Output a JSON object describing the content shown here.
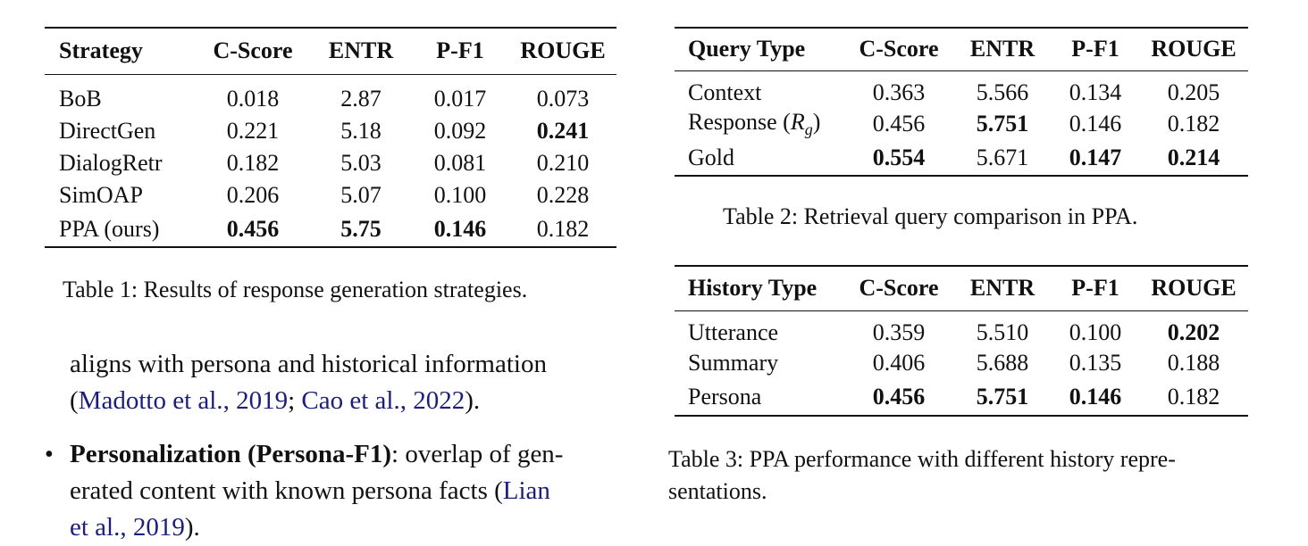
{
  "table1": {
    "headers": [
      "Strategy",
      "C-Score",
      "ENTR",
      "P-F1",
      "ROUGE"
    ],
    "rows": [
      [
        "BoB",
        "0.018",
        "2.87",
        "0.017",
        "0.073"
      ],
      [
        "DirectGen",
        "0.221",
        "5.18",
        "0.092",
        "0.241"
      ],
      [
        "DialogRetr",
        "0.182",
        "5.03",
        "0.081",
        "0.210"
      ],
      [
        "SimOAP",
        "0.206",
        "5.07",
        "0.100",
        "0.228"
      ],
      [
        "PPA (ours)",
        "0.456",
        "5.75",
        "0.146",
        "0.182"
      ]
    ],
    "caption": "Table 1: Results of response generation strategies."
  },
  "table2": {
    "headers": [
      "Query Type",
      "C-Score",
      "ENTR",
      "P-F1",
      "ROUGE"
    ],
    "rows": [
      [
        "Context",
        "0.363",
        "5.566",
        "0.134",
        "0.205"
      ],
      [
        "Response",
        "0.456",
        "5.751",
        "0.146",
        "0.182"
      ],
      [
        "Gold",
        "0.554",
        "5.671",
        "0.147",
        "0.214"
      ]
    ],
    "response_math": "R",
    "response_sub": "g",
    "caption": "Table 2: Retrieval query comparison in PPA."
  },
  "table3": {
    "headers": [
      "History Type",
      "C-Score",
      "ENTR",
      "P-F1",
      "ROUGE"
    ],
    "rows": [
      [
        "Utterance",
        "0.359",
        "5.510",
        "0.100",
        "0.202"
      ],
      [
        "Summary",
        "0.406",
        "5.688",
        "0.135",
        "0.188"
      ],
      [
        "Persona",
        "0.456",
        "5.751",
        "0.146",
        "0.182"
      ]
    ],
    "caption_line1": "Table 3: PPA performance with different history repre-",
    "caption_line2": "sentations."
  },
  "body": {
    "line1": "aligns with persona and historical information",
    "cite1_author": "Madotto et al.",
    "cite1_year": "2019",
    "cite2_author": "Cao et al.",
    "cite2_year": "2022",
    "bullet_term": "Personalization (Persona-F1)",
    "bullet_line1_rest": ": overlap of gen-",
    "bullet_line2": "erated content with known persona facts (",
    "cite3_author": "Lian",
    "cite3_line2": "et al., 2019",
    "bullet_line2_end": ")."
  }
}
